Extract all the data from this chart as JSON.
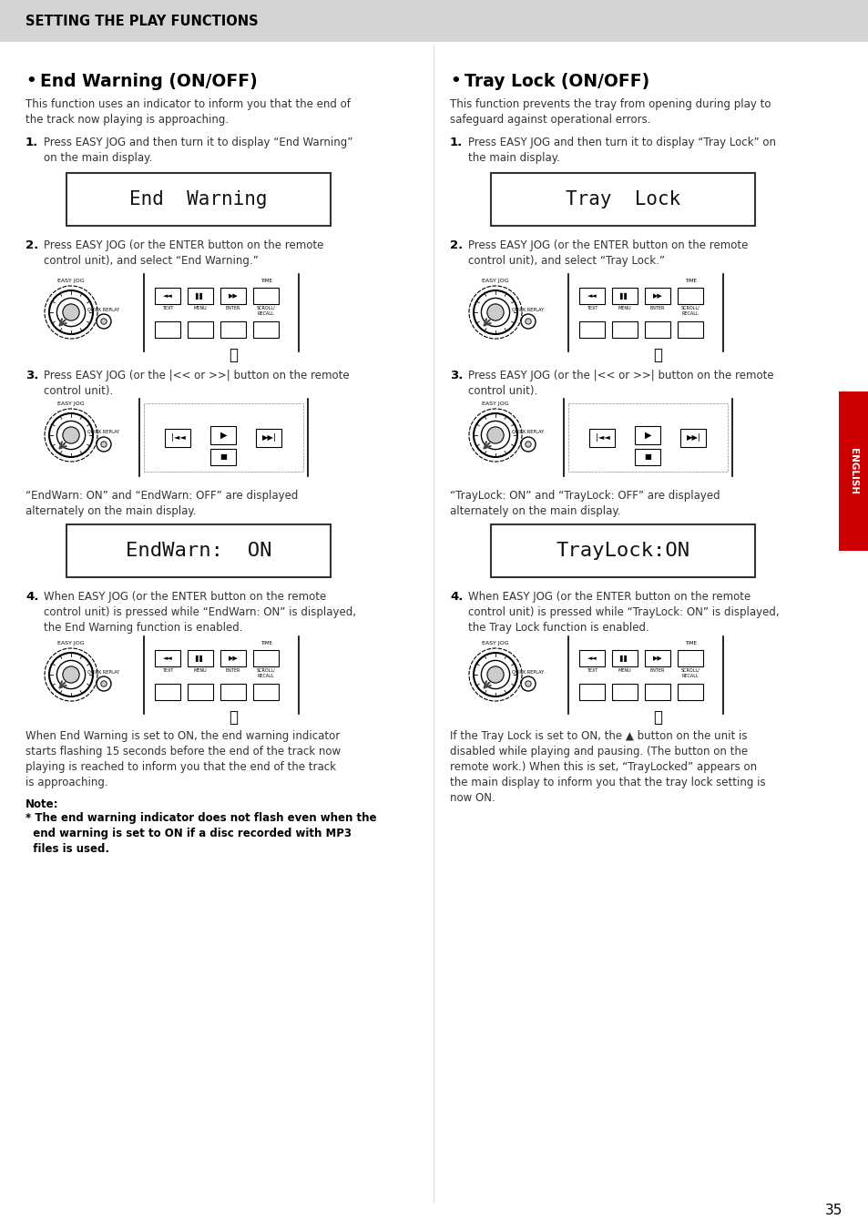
{
  "bg_color": "#e8e8e8",
  "page_bg": "#ffffff",
  "header_bg": "#d4d4d4",
  "header_text": "SETTING THE PLAY FUNCTIONS",
  "page_number": "35",
  "sidebar_color": "#cc0000",
  "sidebar_text": "ENGLISH",
  "left_title": "End Warning (ON/OFF)",
  "right_title": "Tray Lock (ON/OFF)",
  "left_intro": "This function uses an indicator to inform you that the end of\nthe track now playing is approaching.",
  "right_intro": "This function prevents the tray from opening during play to\nsafeguard against operational errors.",
  "left_step1": "Press EASY JOG and then turn it to display “End Warning”\non the main display.",
  "right_step1": "Press EASY JOG and then turn it to display “Tray Lock” on\nthe main display.",
  "left_display1": "End  Warning",
  "right_display1": "Tray  Lock",
  "left_step2": "Press EASY JOG (or the ENTER button on the remote\ncontrol unit), and select “End Warning.”",
  "right_step2": "Press EASY JOG (or the ENTER button on the remote\ncontrol unit), and select “Tray Lock.”",
  "left_step3": "Press EASY JOG (or the |<< or >>| button on the remote\ncontrol unit).",
  "right_step3": "Press EASY JOG (or the |<< or >>| button on the remote\ncontrol unit).",
  "left_between": "“EndWarn: ON” and “EndWarn: OFF” are displayed\nalternately on the main display.",
  "right_between": "“TrayLock: ON” and “TrayLock: OFF” are displayed\nalternately on the main display.",
  "left_display2": "EndWarn:  ON",
  "right_display2": "TrayLock:ON",
  "left_step4": "When EASY JOG (or the ENTER button on the remote\ncontrol unit) is pressed while “EndWarn: ON” is displayed,\nthe End Warning function is enabled.",
  "right_step4": "When EASY JOG (or the ENTER button on the remote\ncontrol unit) is pressed while “TrayLock: ON” is displayed,\nthe Tray Lock function is enabled.",
  "left_after": "When End Warning is set to ON, the end warning indicator\nstarts flashing 15 seconds before the end of the track now\nplaying is reached to inform you that the end of the track\nis approaching.",
  "right_after": "If the Tray Lock is set to ON, the ▲ button on the unit is\ndisabled while playing and pausing. (The button on the\nremote work.) When this is set, “TrayLocked” appears on\nthe main display to inform you that the tray lock setting is\nnow ON.",
  "note_title": "Note:",
  "note_text": "* The end warning indicator does not flash even when the\n  end warning is set to ON if a disc recorded with MP3\n  files is used."
}
